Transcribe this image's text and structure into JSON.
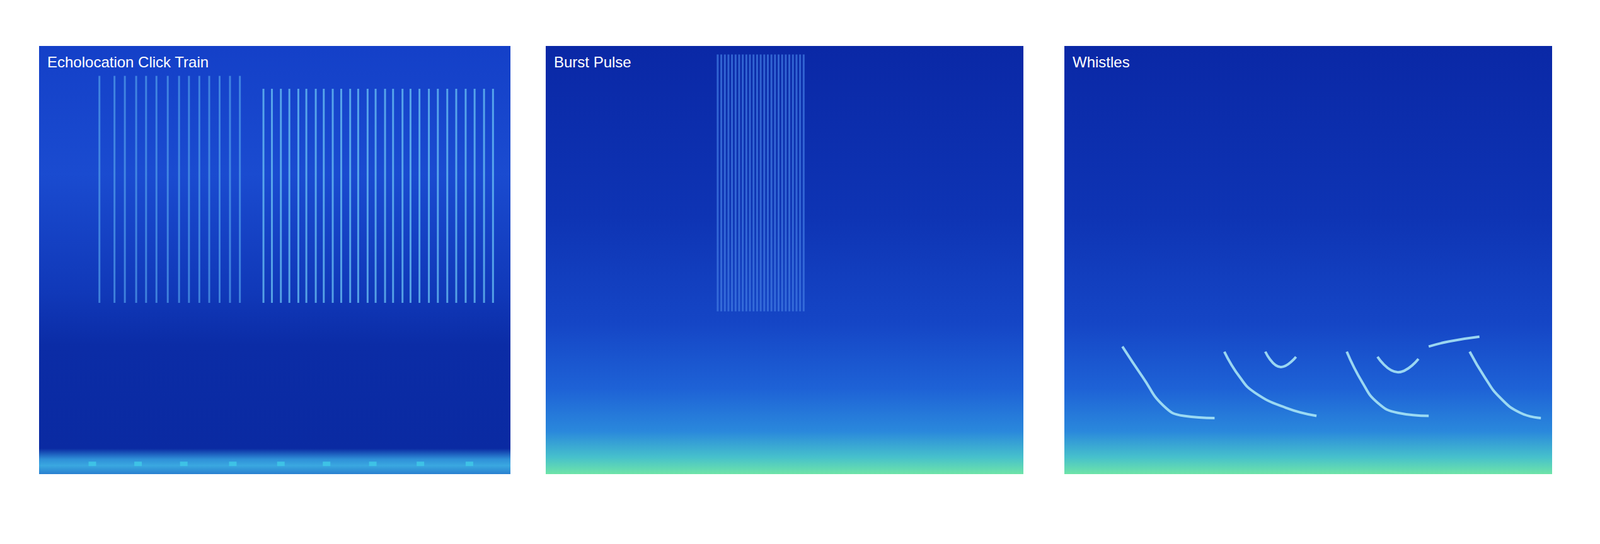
{
  "chart_data": [
    {
      "type": "spectrogram",
      "title": "Echolocation Click Train",
      "xlim": [
        0,
        100
      ],
      "ylim": [
        0,
        100
      ],
      "tick_labels": false,
      "grid": false,
      "series": [
        {
          "type": "clicks",
          "color": "#4f9ae8",
          "x": [
            12.8,
            16,
            18.2,
            20.6,
            22.7,
            24.9,
            27.3,
            29.7,
            31.8,
            34,
            36.1,
            38.3,
            40.5,
            42.6
          ],
          "low": [
            40,
            40,
            40,
            40,
            40,
            40,
            40,
            40,
            40,
            40,
            40,
            40,
            40,
            40
          ],
          "high": [
            93,
            93,
            93,
            93,
            93,
            93,
            93,
            93,
            93,
            93,
            93,
            93,
            93,
            93
          ]
        },
        {
          "type": "clicks",
          "color": "#6cc4f4",
          "x": [
            47.6,
            49.4,
            51.3,
            53.1,
            55,
            56.7,
            58.7,
            60.4,
            62.3,
            64.1,
            66,
            67.7,
            69.7,
            71.4,
            73.4,
            75.1,
            77.1,
            78.8,
            80.7,
            82.7,
            84.6,
            86.6,
            88.5,
            90.5,
            92.4,
            94.4,
            96.3
          ],
          "low": [
            40,
            40,
            40,
            40,
            40,
            40,
            40,
            40,
            40,
            40,
            40,
            40,
            40,
            40,
            40,
            40,
            40,
            40,
            40,
            40,
            40,
            40,
            40,
            40,
            40,
            40,
            40
          ],
          "high": [
            90,
            90,
            90,
            90,
            90,
            90,
            90,
            90,
            90,
            90,
            90,
            90,
            90,
            90,
            90,
            90,
            90,
            90,
            90,
            90,
            90,
            90,
            90,
            90,
            90,
            90,
            90
          ]
        },
        {
          "type": "scatter",
          "marker": "square",
          "color": "#3fc8e8",
          "x": [
            11.3,
            21,
            30.7,
            41.1,
            51.3,
            61,
            70.8,
            80.9,
            91.3
          ],
          "values": [
            2.4,
            2.4,
            2.4,
            2.4,
            2.4,
            2.4,
            2.4,
            2.4,
            2.4
          ]
        }
      ]
    },
    {
      "type": "spectrogram",
      "title": "Burst Pulse",
      "xlim": [
        0,
        100
      ],
      "ylim": [
        0,
        100
      ],
      "tick_labels": false,
      "grid": false,
      "series": [
        {
          "type": "clicks",
          "color": "#3f78e0",
          "x": [
            36,
            36.75,
            37.5,
            38.25,
            39,
            39.75,
            40.5,
            41.25,
            42,
            42.75,
            43.5,
            44.25,
            45,
            45.75,
            46.5,
            47.25,
            48,
            48.75,
            49.5,
            50.25,
            51,
            51.75,
            52.5,
            53.25,
            54
          ],
          "low": [
            38,
            38,
            38,
            38,
            38,
            38,
            38,
            38,
            38,
            38,
            38,
            38,
            38,
            38,
            38,
            38,
            38,
            38,
            38,
            38,
            38,
            38,
            38,
            38,
            38
          ],
          "high": [
            98,
            98,
            98,
            98,
            98,
            98,
            98,
            98,
            98,
            98,
            98,
            98,
            98,
            98,
            98,
            98,
            98,
            98,
            98,
            98,
            98,
            98,
            98,
            98,
            98
          ]
        }
      ]
    },
    {
      "type": "spectrogram",
      "title": "Whistles",
      "xlim": [
        0,
        100
      ],
      "ylim": [
        0,
        100
      ],
      "tick_labels": false,
      "grid": false,
      "series": [
        {
          "type": "line",
          "color": "#a8e4f5",
          "x": [
            11.9,
            16.1,
            20.3,
            24.5,
            30.8,
            null,
            32.8,
            36,
            39.1,
            45.4,
            51.7,
            null,
            41.2,
            44.4,
            47.5,
            null,
            57.9,
            61.1,
            64.2,
            68.4,
            74.7,
            null,
            64.2,
            68.4,
            72.6,
            null,
            83.1,
            86.2,
            89.3,
            93.5,
            97.7,
            null,
            74.7,
            78.9,
            85.1
          ],
          "values": [
            29.8,
            22.6,
            16,
            13.6,
            13.1,
            null,
            28.6,
            22.6,
            19,
            15.5,
            13.6,
            null,
            28.6,
            25,
            27.4,
            null,
            28.6,
            21.4,
            16.7,
            14.3,
            13.6,
            null,
            27.4,
            23.8,
            26.9,
            null,
            28.6,
            22.6,
            17.9,
            14.3,
            13.1,
            null,
            29.8,
            31,
            32.1
          ]
        }
      ]
    }
  ]
}
